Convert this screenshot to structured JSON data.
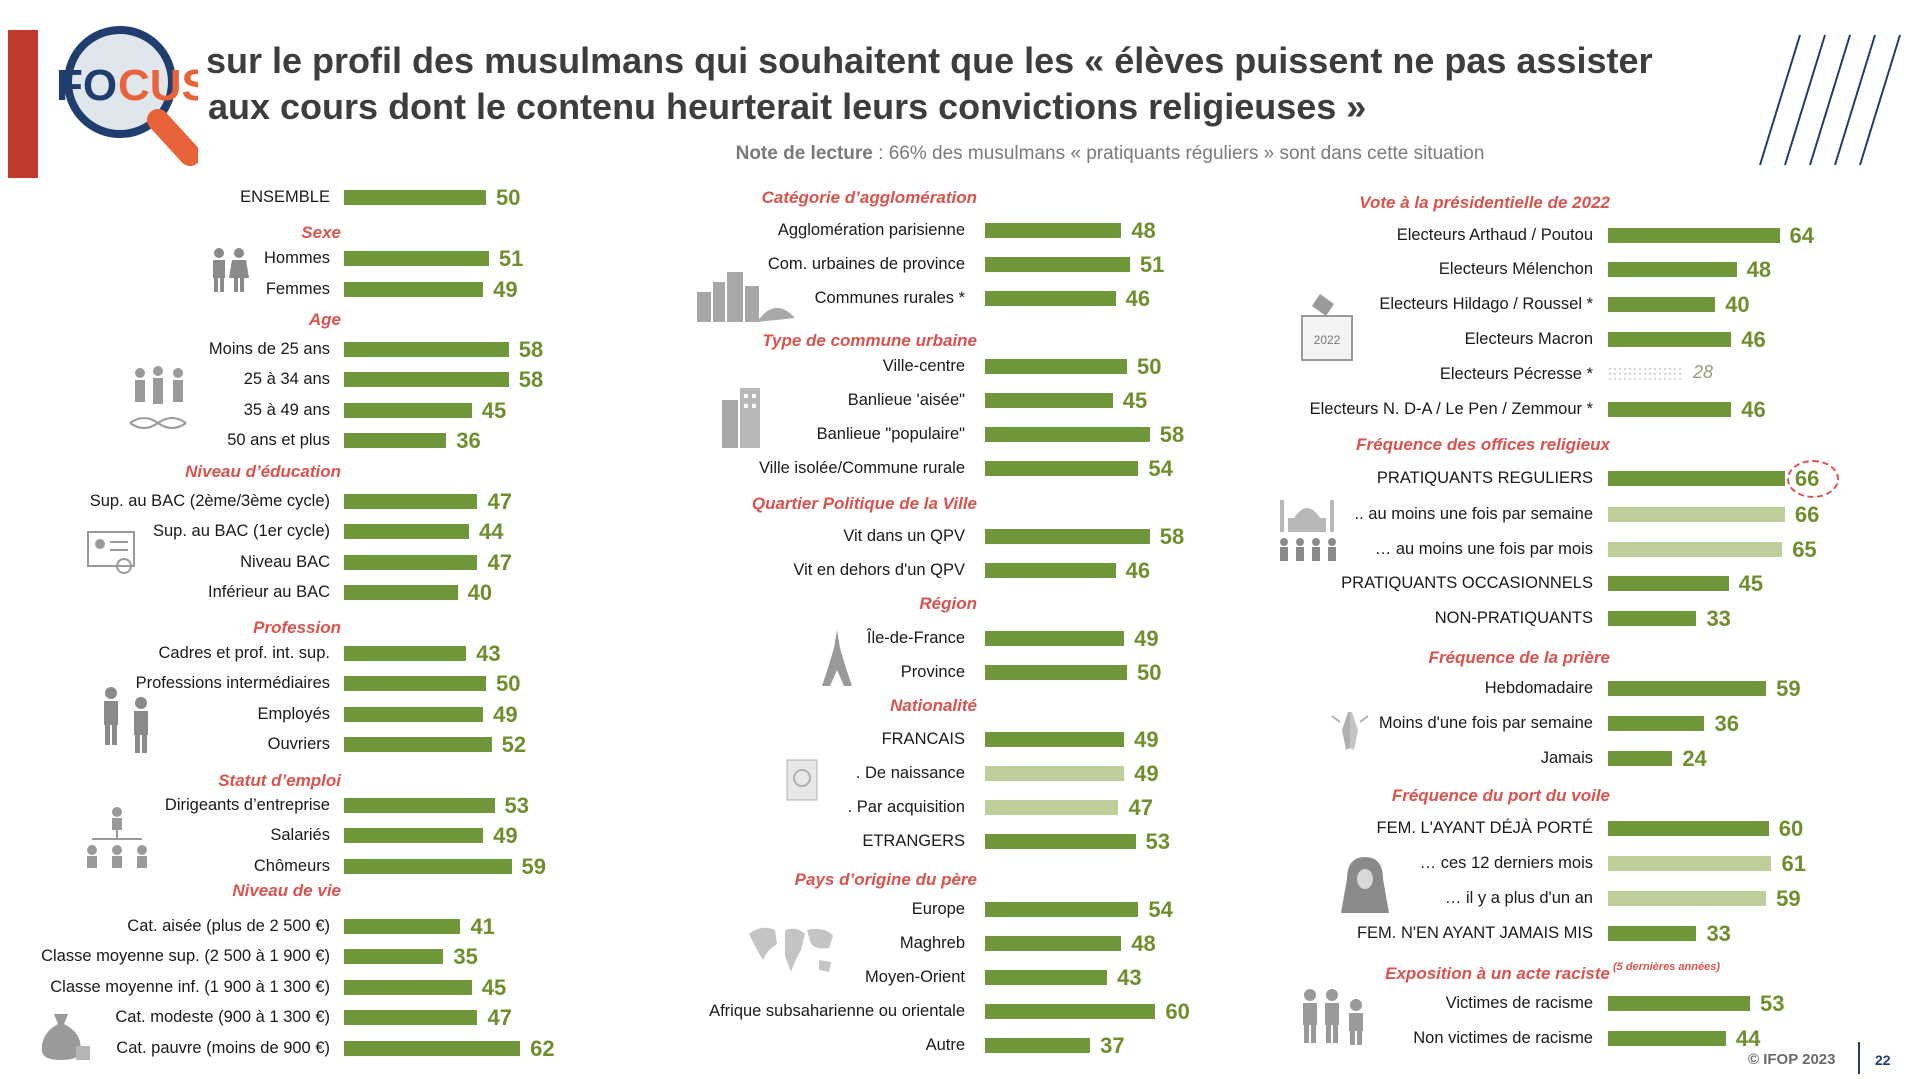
{
  "logo": {
    "part1": "FO",
    "part2": "CUS"
  },
  "title": {
    "line1": "sur le profil des musulmans qui souhaitent que les « élèves puissent ne pas assister",
    "line2": "aux cours dont le contenu heurterait leurs convictions religieuses »"
  },
  "note": {
    "label": "Note de lecture",
    "text": " : 66% des musulmans « pratiquants réguliers » sont dans cette situation"
  },
  "icons": {
    "ballot_year": "2022"
  },
  "notes": {
    "racism": "(5 dernières années)"
  },
  "footer": {
    "copyright": "© IFOP 2023",
    "page": "22"
  },
  "colors": {
    "bar": "#70963a",
    "bar_light": "#bdd09a",
    "section": "#d9534f",
    "value": "#6f8f2e",
    "circle": "#d9534f"
  },
  "chart_data": {
    "type": "bar",
    "orientation": "horizontal",
    "unit": "%",
    "scale_max": 100,
    "columns": [
      {
        "groups": [
          {
            "title": "",
            "rows": [
              {
                "label": "ENSEMBLE",
                "value": 50
              }
            ]
          },
          {
            "title": "Sexe",
            "rows": [
              {
                "label": "Hommes",
                "value": 51
              },
              {
                "label": "Femmes",
                "value": 49
              }
            ]
          },
          {
            "title": "Age",
            "rows": [
              {
                "label": "Moins de 25 ans",
                "value": 58
              },
              {
                "label": "25 à 34 ans",
                "value": 58
              },
              {
                "label": "35 à 49 ans",
                "value": 45
              },
              {
                "label": "50 ans et plus",
                "value": 36
              }
            ]
          },
          {
            "title": "Niveau d’éducation",
            "rows": [
              {
                "label": "Sup. au BAC (2ème/3ème cycle)",
                "value": 47
              },
              {
                "label": "Sup. au BAC (1er cycle)",
                "value": 44
              },
              {
                "label": "Niveau BAC",
                "value": 47
              },
              {
                "label": "Inférieur au BAC",
                "value": 40
              }
            ]
          },
          {
            "title": "Profession",
            "rows": [
              {
                "label": "Cadres et prof. int. sup.",
                "value": 43
              },
              {
                "label": "Professions intermédiaires",
                "value": 50
              },
              {
                "label": "Employés",
                "value": 49
              },
              {
                "label": "Ouvriers",
                "value": 52
              }
            ]
          },
          {
            "title": "Statut d’emploi",
            "rows": [
              {
                "label": "Dirigeants d’entreprise",
                "value": 53
              },
              {
                "label": "Salariés",
                "value": 49
              },
              {
                "label": "Chômeurs",
                "value": 59
              }
            ]
          },
          {
            "title": "Niveau de vie",
            "rows": [
              {
                "label": "Cat. aisée (plus de 2 500 €)",
                "value": 41
              },
              {
                "label": "Classe moyenne sup. (2 500 à 1 900 €)",
                "value": 35
              },
              {
                "label": "Classe moyenne inf. (1 900 à 1 300 €)",
                "value": 45
              },
              {
                "label": "Cat. modeste (900 à 1 300 €)",
                "value": 47
              },
              {
                "label": "Cat. pauvre (moins de 900 €)",
                "value": 62
              }
            ]
          }
        ]
      },
      {
        "groups": [
          {
            "title": "Catégorie d’agglomération",
            "rows": [
              {
                "label": "Agglomération parisienne",
                "value": 48
              },
              {
                "label": "Com. urbaines de province",
                "value": 51
              },
              {
                "label": "Communes rurales *",
                "value": 46
              }
            ]
          },
          {
            "title": "Type de commune urbaine",
            "rows": [
              {
                "label": "Ville-centre",
                "value": 50
              },
              {
                "label": "Banlieue 'aisée\"",
                "value": 45
              },
              {
                "label": "Banlieue \"populaire\"",
                "value": 58
              },
              {
                "label": "Ville isolée/Commune rurale",
                "value": 54
              }
            ]
          },
          {
            "title": "Quartier Politique de la Ville",
            "rows": [
              {
                "label": "Vit dans un QPV",
                "value": 58
              },
              {
                "label": "Vit en dehors d'un QPV",
                "value": 46
              }
            ]
          },
          {
            "title": "Région",
            "rows": [
              {
                "label": "Île-de-France",
                "value": 49
              },
              {
                "label": "Province",
                "value": 50
              }
            ]
          },
          {
            "title": "Nationalité",
            "rows": [
              {
                "label": "FRANCAIS",
                "value": 49
              },
              {
                "label": ". De naissance",
                "value": 49,
                "style": "light"
              },
              {
                "label": ". Par acquisition",
                "value": 47,
                "style": "light"
              },
              {
                "label": "ETRANGERS",
                "value": 53
              }
            ]
          },
          {
            "title": "Pays d’origine du père",
            "rows": [
              {
                "label": "Europe",
                "value": 54
              },
              {
                "label": "Maghreb",
                "value": 48
              },
              {
                "label": "Moyen-Orient",
                "value": 43
              },
              {
                "label": "Afrique subsaharienne ou orientale",
                "value": 60
              },
              {
                "label": "Autre",
                "value": 37
              }
            ]
          }
        ]
      },
      {
        "groups": [
          {
            "title": "Vote à la présidentielle de 2022",
            "rows": [
              {
                "label": "Electeurs Arthaud / Poutou",
                "value": 64
              },
              {
                "label": "Electeurs Mélenchon",
                "value": 48
              },
              {
                "label": "Electeurs Hildago / Roussel  *",
                "value": 40
              },
              {
                "label": "Electeurs Macron",
                "value": 46
              },
              {
                "label": "Electeurs Pécresse *",
                "value": 28,
                "style": "dotted"
              },
              {
                "label": "Electeurs N. D-A / Le Pen / Zemmour *",
                "value": 46
              }
            ]
          },
          {
            "title": "Fréquence des offices religieux",
            "rows": [
              {
                "label": "PRATIQUANTS REGULIERS",
                "value": 66,
                "highlight": true
              },
              {
                "label": ".. au moins une fois par semaine",
                "value": 66,
                "style": "light"
              },
              {
                "label": "… au moins une fois par mois",
                "value": 65,
                "style": "light"
              },
              {
                "label": "PRATIQUANTS OCCASIONNELS",
                "value": 45
              },
              {
                "label": "NON-PRATIQUANTS",
                "value": 33
              }
            ]
          },
          {
            "title": "Fréquence de la prière",
            "rows": [
              {
                "label": "Hebdomadaire",
                "value": 59
              },
              {
                "label": "Moins d'une fois par semaine",
                "value": 36
              },
              {
                "label": "Jamais",
                "value": 24
              }
            ]
          },
          {
            "title": "Fréquence du port du voile",
            "rows": [
              {
                "label": "FEM. L'AYANT DÉJÀ PORTÉ",
                "value": 60
              },
              {
                "label": "… ces 12 derniers mois",
                "value": 61,
                "style": "light"
              },
              {
                "label": "… il y a plus d'un an",
                "value": 59,
                "style": "light"
              },
              {
                "label": "FEM. N'EN AYANT JAMAIS MIS",
                "value": 33
              }
            ]
          },
          {
            "title": "Exposition à un acte raciste",
            "rows": [
              {
                "label": "Victimes de racisme",
                "value": 53
              },
              {
                "label": "Non victimes de racisme",
                "value": 44
              }
            ]
          }
        ]
      }
    ]
  }
}
